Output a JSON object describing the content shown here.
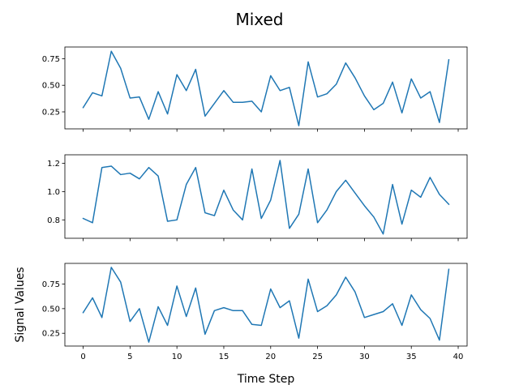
{
  "chart_data": {
    "type": "line",
    "title": "Mixed",
    "xlabel": "Time Step",
    "ylabel": "Signal Values",
    "x": [
      0,
      1,
      2,
      3,
      4,
      5,
      6,
      7,
      8,
      9,
      10,
      11,
      12,
      13,
      14,
      15,
      16,
      17,
      18,
      19,
      20,
      21,
      22,
      23,
      24,
      25,
      26,
      27,
      28,
      29,
      30,
      31,
      32,
      33,
      34,
      35,
      36,
      37,
      38,
      39
    ],
    "xlim": [
      -1.95,
      40.95
    ],
    "xticks": [
      0,
      5,
      10,
      15,
      20,
      25,
      30,
      35,
      40
    ],
    "line_color": "#1f77b4",
    "grid": false,
    "subplots": [
      {
        "ylim": [
          0.09,
          0.86
        ],
        "yticks": [
          0.25,
          0.5,
          0.75
        ],
        "ytick_labels": [
          "0.25",
          "0.50",
          "0.75"
        ],
        "values": [
          0.29,
          0.43,
          0.4,
          0.82,
          0.66,
          0.38,
          0.39,
          0.18,
          0.44,
          0.23,
          0.6,
          0.45,
          0.65,
          0.21,
          0.33,
          0.45,
          0.34,
          0.34,
          0.35,
          0.25,
          0.59,
          0.45,
          0.48,
          0.12,
          0.72,
          0.39,
          0.42,
          0.51,
          0.71,
          0.57,
          0.4,
          0.27,
          0.33,
          0.53,
          0.24,
          0.56,
          0.38,
          0.44,
          0.15,
          0.74
        ]
      },
      {
        "ylim": [
          0.67,
          1.26
        ],
        "yticks": [
          0.8,
          1.0,
          1.2
        ],
        "ytick_labels": [
          "0.8",
          "1.0",
          "1.2"
        ],
        "values": [
          0.81,
          0.78,
          1.17,
          1.18,
          1.12,
          1.13,
          1.09,
          1.17,
          1.11,
          0.79,
          0.8,
          1.05,
          1.17,
          0.85,
          0.83,
          1.01,
          0.87,
          0.8,
          1.16,
          0.81,
          0.94,
          1.22,
          0.74,
          0.84,
          1.16,
          0.78,
          0.87,
          1.0,
          1.08,
          0.99,
          0.9,
          0.82,
          0.7,
          1.05,
          0.77,
          1.01,
          0.96,
          1.1,
          0.98,
          0.91
        ]
      },
      {
        "ylim": [
          0.12,
          0.96
        ],
        "yticks": [
          0.25,
          0.5,
          0.75
        ],
        "ytick_labels": [
          "0.25",
          "0.50",
          "0.75"
        ],
        "values": [
          0.46,
          0.61,
          0.41,
          0.92,
          0.77,
          0.37,
          0.5,
          0.16,
          0.52,
          0.33,
          0.73,
          0.42,
          0.71,
          0.24,
          0.48,
          0.51,
          0.48,
          0.48,
          0.34,
          0.33,
          0.7,
          0.51,
          0.58,
          0.2,
          0.8,
          0.47,
          0.53,
          0.64,
          0.82,
          0.67,
          0.41,
          0.44,
          0.47,
          0.55,
          0.33,
          0.64,
          0.49,
          0.4,
          0.18,
          0.9
        ]
      }
    ]
  }
}
